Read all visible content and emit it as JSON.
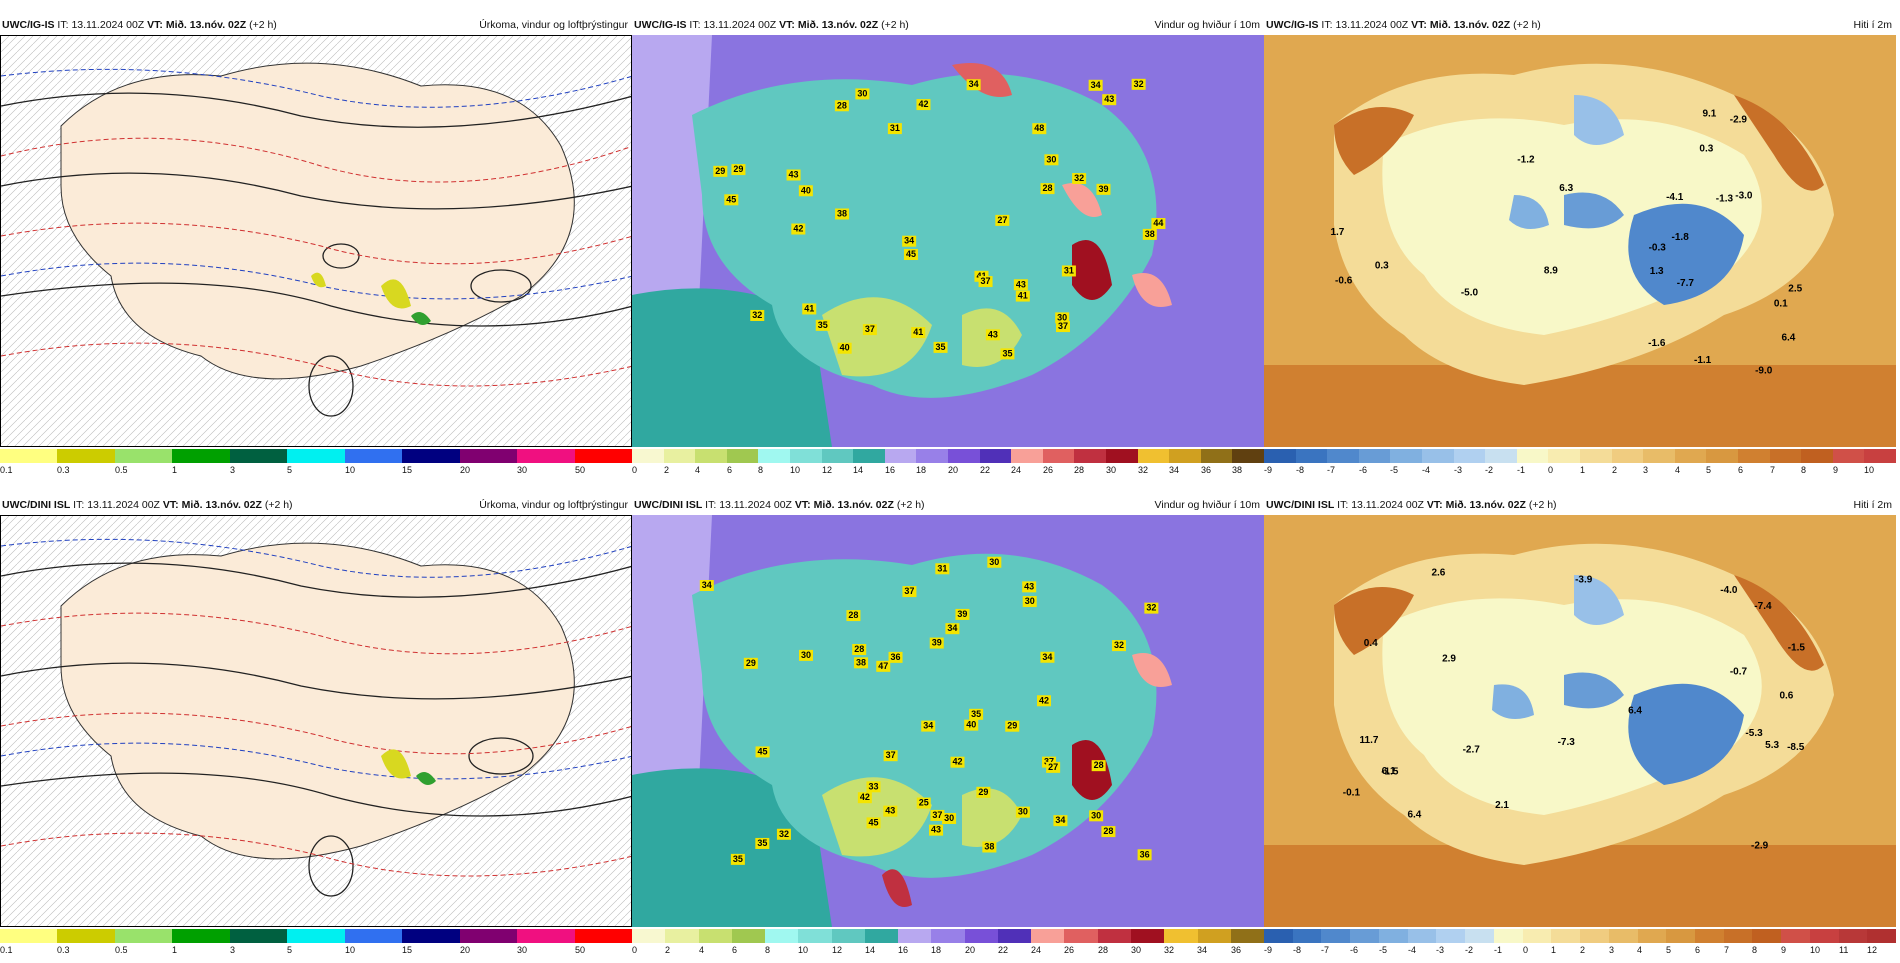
{
  "rows": [
    {
      "model": "UWC/IG-IS",
      "it_label": "IT:",
      "it_value": "13.11.2024 00Z",
      "vt_label": "VT:",
      "vt_value": "Mið. 13.nóv. 02Z",
      "lead": "(+2 h)",
      "panels": [
        {
          "title": "Úrkoma, vindur og loftþrýstingur"
        },
        {
          "title": "Vindur og hviður í 10m"
        },
        {
          "title": "Hiti í 2m"
        }
      ],
      "temps": [
        "1.3",
        "2.5",
        "-1.3",
        "0.1",
        "-1.6",
        "0.3",
        "-3.0",
        "6.3",
        "6.4",
        "-1.1",
        "-1.8",
        "-0.3",
        "-0.6",
        "-7.7",
        "-5.0",
        "-9.0",
        "-2.9",
        "0.3",
        "9.1",
        "-1.2",
        "8.9",
        "1.7",
        "-4.1"
      ],
      "gusts": [
        "35",
        "28",
        "41",
        "43",
        "32",
        "43",
        "38",
        "38",
        "45",
        "35",
        "32",
        "29",
        "34",
        "41",
        "28",
        "34",
        "45",
        "43",
        "31",
        "39",
        "30",
        "37",
        "40",
        "37",
        "27",
        "30",
        "42",
        "40",
        "35",
        "31",
        "41",
        "32",
        "48",
        "37",
        "30",
        "41",
        "34",
        "29",
        "44",
        "43",
        "42"
      ]
    },
    {
      "model": "UWC/DINI ISL",
      "it_label": "IT:",
      "it_value": "13.11.2024 00Z",
      "vt_label": "VT:",
      "vt_value": "Mið. 13.nóv. 02Z",
      "lead": "(+2 h)",
      "panels": [
        {
          "title": "Úrkoma, vindur og loftþrýstingur"
        },
        {
          "title": "Vindur og hviður í 10m"
        },
        {
          "title": "Hiti í 2m"
        }
      ],
      "temps": [
        "2.9",
        "-1.5",
        "0.4",
        "2.1",
        "5.3",
        "0.6",
        "-2.9",
        "-2.7",
        "6.4",
        "2.6",
        "-3.9",
        "-0.1",
        "6.4",
        "-1.5",
        "-5.3",
        "-7.3",
        "-8.5",
        "11.7",
        "6.1",
        "-0.7",
        "-7.4",
        "-4.0"
      ],
      "gusts": [
        "35",
        "28",
        "35",
        "42",
        "37",
        "30",
        "30",
        "43",
        "34",
        "42",
        "36",
        "38",
        "43",
        "31",
        "30",
        "28",
        "37",
        "45",
        "34",
        "32",
        "34",
        "32",
        "43",
        "29",
        "27",
        "30",
        "36",
        "34",
        "32",
        "29",
        "28",
        "37",
        "39",
        "35",
        "40",
        "38",
        "37",
        "34",
        "29",
        "25",
        "30",
        "33",
        "28",
        "45",
        "42",
        "47",
        "39",
        "30"
      ]
    }
  ],
  "legends": {
    "precip": {
      "colors": [
        "#ffff80",
        "#cccc00",
        "#99e26b",
        "#00a000",
        "#006040",
        "#00f0f0",
        "#3070f0",
        "#000080",
        "#800070",
        "#f01080",
        "#ff0000"
      ],
      "labels": [
        "0.1",
        "0.3",
        "0.5",
        "1",
        "3",
        "5",
        "10",
        "15",
        "20",
        "30",
        "50"
      ]
    },
    "wind": {
      "colors": [
        "#f8f8d0",
        "#e8f0a0",
        "#c8e070",
        "#a0c850",
        "#a0f8f0",
        "#80e0d8",
        "#60c8c0",
        "#30a8a0",
        "#b8a8f0",
        "#9880e8",
        "#7850d8",
        "#5030b8",
        "#f8a098",
        "#e06060",
        "#c03040",
        "#a01020",
        "#f0c030",
        "#d0a020",
        "#907018",
        "#604010"
      ],
      "labels": [
        "0",
        "2",
        "4",
        "6",
        "8",
        "10",
        "12",
        "14",
        "16",
        "18",
        "20",
        "22",
        "24",
        "26",
        "28",
        "30",
        "32",
        "34",
        "36",
        "38"
      ]
    },
    "wind2": {
      "labels": [
        "0",
        "2",
        "4",
        "6",
        "8",
        "10",
        "12",
        "14",
        "16",
        "18",
        "20",
        "22",
        "24",
        "26",
        "28",
        "30",
        "32",
        "34",
        "36"
      ]
    },
    "temp": {
      "colors": [
        "#2a60b0",
        "#3a74c0",
        "#5088cc",
        "#689cd6",
        "#80b0e0",
        "#98c0e8",
        "#b0d0f0",
        "#c8e0f0",
        "#f8f8c8",
        "#f8ecb0",
        "#f4dc98",
        "#f0cc80",
        "#e8bc68",
        "#e0a850",
        "#d89840",
        "#d08030",
        "#c87028",
        "#c06020",
        "#d05048",
        "#c84040"
      ],
      "labels": [
        "-9",
        "-8",
        "-7",
        "-6",
        "-5",
        "-4",
        "-3",
        "-2",
        "-1",
        "0",
        "1",
        "2",
        "3",
        "4",
        "5",
        "6",
        "7",
        "8",
        "9",
        "10"
      ]
    },
    "temp2": {
      "labels": [
        "-9",
        "-8",
        "-7",
        "-6",
        "-5",
        "-4",
        "-3",
        "-2",
        "-1",
        "0",
        "1",
        "2",
        "3",
        "4",
        "5",
        "6",
        "7",
        "8",
        "9",
        "10",
        "11",
        "12"
      ]
    }
  }
}
